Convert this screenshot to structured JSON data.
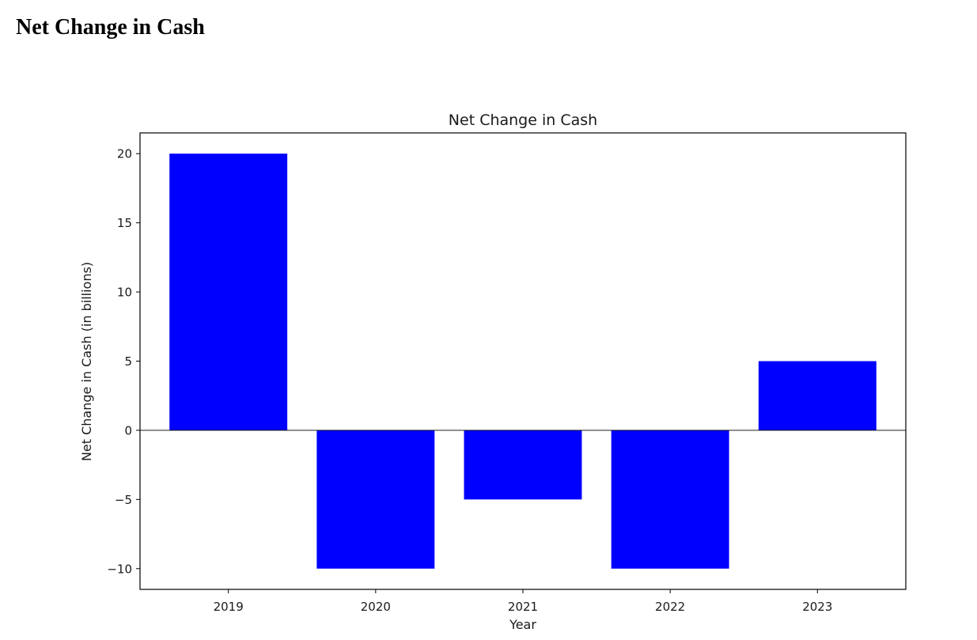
{
  "page": {
    "heading": "Net Change in Cash"
  },
  "chart_data": {
    "type": "bar",
    "title": "Net Change in Cash",
    "xlabel": "Year",
    "ylabel": "Net Change in Cash (in billions)",
    "categories": [
      "2019",
      "2020",
      "2021",
      "2022",
      "2023"
    ],
    "values": [
      20,
      -10,
      -5,
      -10,
      5
    ],
    "ylim": [
      -11.5,
      21.5
    ],
    "yticks": [
      -10,
      -5,
      0,
      5,
      10,
      15,
      20
    ],
    "ytick_labels": [
      "−10",
      "−5",
      "0",
      "5",
      "10",
      "15",
      "20"
    ],
    "bar_color": "#0000ff",
    "zero_line": true,
    "grid": false,
    "legend": "none"
  }
}
